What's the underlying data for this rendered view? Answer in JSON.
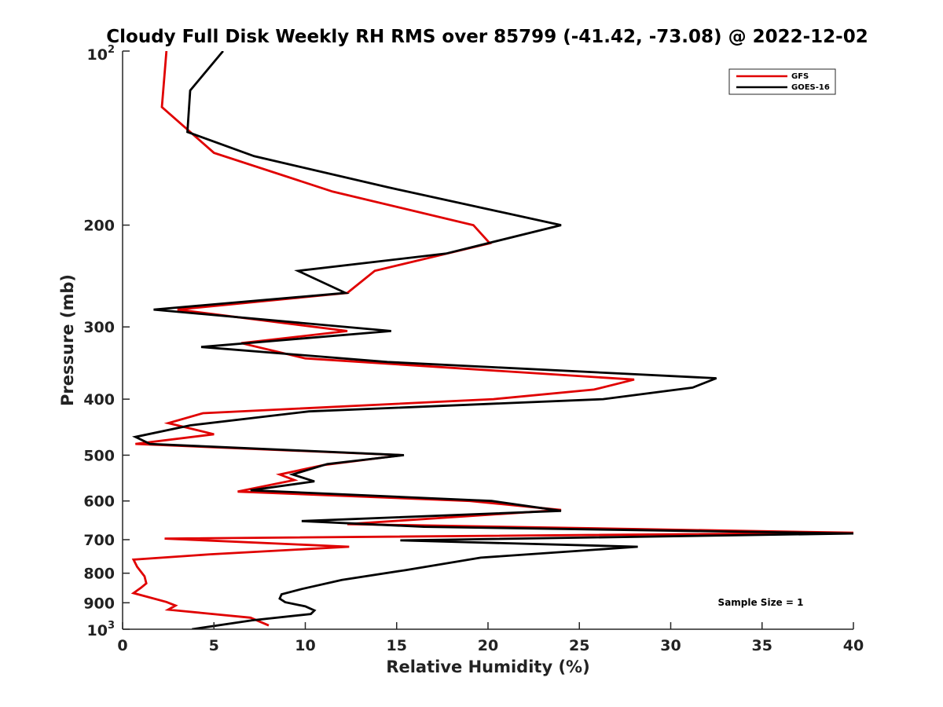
{
  "chart_data": {
    "type": "line",
    "title": "Cloudy Full Disk Weekly RH RMS over 85799 (-41.42, -73.08) @ 2022-12-02",
    "xlabel": "Relative Humidity (%)",
    "ylabel": "Pressure (mb)",
    "xlim": [
      0,
      40
    ],
    "ylim": [
      100,
      1000
    ],
    "y_scale": "log",
    "y_reversed": true,
    "grid": false,
    "legend_position": "top-right",
    "x_ticks": [
      0,
      5,
      10,
      15,
      20,
      25,
      30,
      35,
      40
    ],
    "x_tick_labels": [
      "0",
      "5",
      "10",
      "15",
      "20",
      "25",
      "30",
      "35",
      "40"
    ],
    "y_ticks": [
      200,
      300,
      400,
      500,
      600,
      700,
      800,
      900
    ],
    "y_tick_labels": [
      "200",
      "300",
      "400",
      "500",
      "600",
      "700",
      "800",
      "900"
    ],
    "y_top_label": {
      "base": "10",
      "exp": "2"
    },
    "y_bottom_label": {
      "base": "10",
      "exp": "3"
    },
    "annotation": "Sample Size = 1",
    "series": [
      {
        "name": "GFS",
        "color": "#e00000",
        "points": [
          [
            2.4,
            100
          ],
          [
            2.15,
            125
          ],
          [
            5.0,
            150
          ],
          [
            11.5,
            175
          ],
          [
            19.2,
            200
          ],
          [
            20.1,
            215
          ],
          [
            13.8,
            240
          ],
          [
            12.3,
            262
          ],
          [
            3.0,
            280
          ],
          [
            12.3,
            305
          ],
          [
            6.5,
            320
          ],
          [
            10.0,
            340
          ],
          [
            28.0,
            370
          ],
          [
            25.8,
            385
          ],
          [
            20.3,
            400
          ],
          [
            4.4,
            423
          ],
          [
            2.5,
            440
          ],
          [
            5.0,
            460
          ],
          [
            0.7,
            478
          ],
          [
            15.3,
            500
          ],
          [
            11.0,
            520
          ],
          [
            8.6,
            540
          ],
          [
            9.4,
            552
          ],
          [
            6.3,
            578
          ],
          [
            19.0,
            600
          ],
          [
            24.0,
            622
          ],
          [
            12.3,
            658
          ],
          [
            40.0,
            681
          ],
          [
            2.3,
            697
          ],
          [
            12.4,
            720
          ],
          [
            4.8,
            742
          ],
          [
            0.6,
            758
          ],
          [
            0.8,
            780
          ],
          [
            1.2,
            810
          ],
          [
            1.3,
            833
          ],
          [
            1.0,
            848
          ],
          [
            0.6,
            866
          ],
          [
            2.4,
            897
          ],
          [
            2.9,
            910
          ],
          [
            2.5,
            925
          ],
          [
            7.0,
            955
          ],
          [
            8.0,
            985
          ]
        ]
      },
      {
        "name": "GOES-16",
        "color": "#000000",
        "points": [
          [
            5.5,
            100
          ],
          [
            3.7,
            117
          ],
          [
            3.55,
            138
          ],
          [
            7.2,
            152
          ],
          [
            14.5,
            172
          ],
          [
            24.0,
            200
          ],
          [
            17.7,
            224
          ],
          [
            9.6,
            240
          ],
          [
            12.2,
            262
          ],
          [
            1.7,
            280
          ],
          [
            14.7,
            305
          ],
          [
            4.3,
            325
          ],
          [
            14.5,
            345
          ],
          [
            32.5,
            368
          ],
          [
            31.2,
            382
          ],
          [
            26.3,
            400
          ],
          [
            10.2,
            420
          ],
          [
            3.7,
            444
          ],
          [
            0.7,
            465
          ],
          [
            1.5,
            478
          ],
          [
            15.4,
            500
          ],
          [
            11.2,
            518
          ],
          [
            9.3,
            540
          ],
          [
            10.5,
            555
          ],
          [
            7.0,
            575
          ],
          [
            20.2,
            600
          ],
          [
            24.0,
            624
          ],
          [
            9.8,
            650
          ],
          [
            16.5,
            665
          ],
          [
            40.0,
            683
          ],
          [
            15.2,
            702
          ],
          [
            28.2,
            720
          ],
          [
            19.6,
            752
          ],
          [
            15.5,
            790
          ],
          [
            12.0,
            822
          ],
          [
            9.8,
            852
          ],
          [
            8.7,
            870
          ],
          [
            8.6,
            885
          ],
          [
            8.9,
            898
          ],
          [
            10.0,
            913
          ],
          [
            10.5,
            928
          ],
          [
            10.3,
            941
          ],
          [
            7.1,
            965
          ],
          [
            3.8,
            1000
          ]
        ]
      }
    ]
  }
}
